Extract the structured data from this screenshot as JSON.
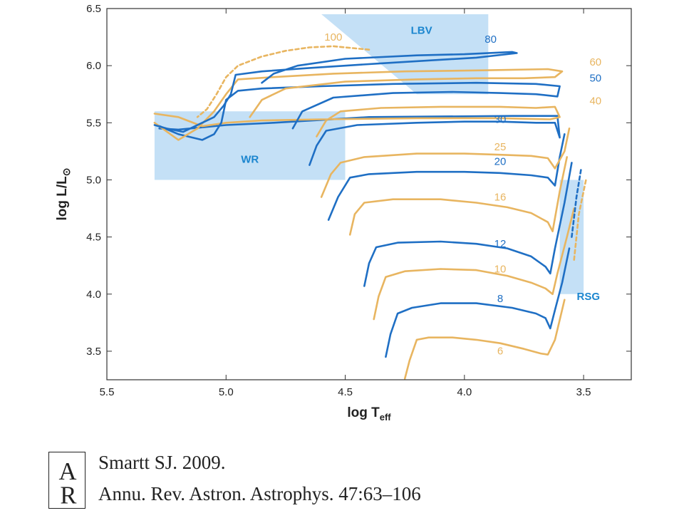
{
  "chart_data": {
    "type": "line",
    "title": "",
    "xlabel": "log T",
    "xlabel_sub": "eff",
    "ylabel": "log L/L",
    "ylabel_sub": "⊙",
    "xlim": [
      5.5,
      3.3
    ],
    "ylim": [
      3.25,
      6.5
    ],
    "x_inverted": true,
    "xticks": [
      5.5,
      5.0,
      4.5,
      4.0,
      3.5
    ],
    "xtick_labels": [
      "5.5",
      "5.0",
      "4.5",
      "4.0",
      "3.5"
    ],
    "yticks": [
      3.5,
      4.0,
      4.5,
      5.0,
      5.5,
      6.0,
      6.5
    ],
    "ytick_labels": [
      "3.5",
      "4.0",
      "4.5",
      "5.0",
      "5.5",
      "6.0",
      "6.5"
    ],
    "grid": false,
    "colors": {
      "blue": "#1f6fc4",
      "orange": "#e8b560",
      "region": "#c4e0f6",
      "region_text": "#1c86cf"
    },
    "regions": [
      {
        "name": "WR",
        "label": "WR",
        "polygon": [
          [
            5.3,
            5.0
          ],
          [
            5.3,
            5.6
          ],
          [
            4.5,
            5.6
          ],
          [
            4.5,
            5.0
          ]
        ],
        "label_at": [
          4.9,
          5.15
        ]
      },
      {
        "name": "LBV",
        "label": "LBV",
        "polygon": [
          [
            4.6,
            6.45
          ],
          [
            3.9,
            6.45
          ],
          [
            3.9,
            5.75
          ],
          [
            4.2,
            5.75
          ]
        ],
        "label_at": [
          4.18,
          6.28
        ]
      },
      {
        "name": "RSG",
        "label": "RSG",
        "polygon": [
          [
            3.6,
            5.0
          ],
          [
            3.5,
            5.0
          ],
          [
            3.5,
            4.0
          ],
          [
            3.6,
            4.0
          ]
        ],
        "label_at": [
          3.48,
          3.95
        ]
      }
    ],
    "series": [
      {
        "name": "6",
        "color": "orange",
        "dash": false,
        "label_at": [
          3.85,
          3.47
        ],
        "points": [
          [
            4.25,
            3.26
          ],
          [
            4.23,
            3.42
          ],
          [
            4.2,
            3.6
          ],
          [
            4.15,
            3.62
          ],
          [
            4.05,
            3.62
          ],
          [
            3.95,
            3.6
          ],
          [
            3.85,
            3.57
          ],
          [
            3.75,
            3.52
          ],
          [
            3.68,
            3.48
          ],
          [
            3.65,
            3.47
          ],
          [
            3.62,
            3.6
          ],
          [
            3.58,
            3.95
          ]
        ]
      },
      {
        "name": "8",
        "color": "blue",
        "dash": false,
        "label_at": [
          3.85,
          3.93
        ],
        "points": [
          [
            4.33,
            3.45
          ],
          [
            4.31,
            3.65
          ],
          [
            4.28,
            3.83
          ],
          [
            4.22,
            3.88
          ],
          [
            4.1,
            3.92
          ],
          [
            3.95,
            3.92
          ],
          [
            3.8,
            3.88
          ],
          [
            3.7,
            3.83
          ],
          [
            3.66,
            3.79
          ],
          [
            3.64,
            3.7
          ],
          [
            3.62,
            3.86
          ],
          [
            3.59,
            4.1
          ],
          [
            3.56,
            4.4
          ]
        ]
      },
      {
        "name": "10",
        "color": "orange",
        "dash": false,
        "label_at": [
          3.85,
          4.19
        ],
        "points": [
          [
            4.38,
            3.78
          ],
          [
            4.36,
            3.98
          ],
          [
            4.33,
            4.15
          ],
          [
            4.25,
            4.2
          ],
          [
            4.1,
            4.22
          ],
          [
            3.95,
            4.21
          ],
          [
            3.82,
            4.16
          ],
          [
            3.72,
            4.1
          ],
          [
            3.66,
            4.05
          ],
          [
            3.63,
            4.0
          ],
          [
            3.61,
            4.18
          ],
          [
            3.57,
            4.5
          ],
          [
            3.54,
            4.75
          ]
        ]
      },
      {
        "name": "12",
        "color": "blue",
        "dash": false,
        "label_at": [
          3.85,
          4.41
        ],
        "points": [
          [
            4.42,
            4.07
          ],
          [
            4.4,
            4.27
          ],
          [
            4.37,
            4.41
          ],
          [
            4.28,
            4.45
          ],
          [
            4.1,
            4.46
          ],
          [
            3.95,
            4.44
          ],
          [
            3.82,
            4.4
          ],
          [
            3.72,
            4.33
          ],
          [
            3.66,
            4.24
          ],
          [
            3.64,
            4.18
          ],
          [
            3.62,
            4.4
          ],
          [
            3.58,
            4.8
          ],
          [
            3.55,
            5.15
          ]
        ]
      },
      {
        "name": "16",
        "color": "orange",
        "dash": false,
        "label_at": [
          3.85,
          4.82
        ],
        "points": [
          [
            4.48,
            4.52
          ],
          [
            4.46,
            4.7
          ],
          [
            4.42,
            4.8
          ],
          [
            4.3,
            4.83
          ],
          [
            4.1,
            4.83
          ],
          [
            3.95,
            4.8
          ],
          [
            3.82,
            4.76
          ],
          [
            3.72,
            4.71
          ],
          [
            3.65,
            4.63
          ],
          [
            3.63,
            4.55
          ],
          [
            3.6,
            4.9
          ],
          [
            3.57,
            5.2
          ]
        ]
      },
      {
        "name": "20",
        "color": "blue",
        "dash": false,
        "label_at": [
          3.85,
          5.13
        ],
        "points": [
          [
            4.57,
            4.65
          ],
          [
            4.53,
            4.85
          ],
          [
            4.48,
            5.02
          ],
          [
            4.4,
            5.05
          ],
          [
            4.2,
            5.07
          ],
          [
            4.0,
            5.07
          ],
          [
            3.85,
            5.06
          ],
          [
            3.72,
            5.04
          ],
          [
            3.65,
            5.02
          ],
          [
            3.62,
            4.95
          ],
          [
            3.6,
            5.2
          ],
          [
            3.58,
            5.4
          ]
        ]
      },
      {
        "name": "25",
        "color": "orange",
        "dash": false,
        "label_at": [
          3.85,
          5.26
        ],
        "points": [
          [
            4.6,
            4.85
          ],
          [
            4.56,
            5.05
          ],
          [
            4.52,
            5.15
          ],
          [
            4.42,
            5.2
          ],
          [
            4.2,
            5.23
          ],
          [
            4.0,
            5.23
          ],
          [
            3.85,
            5.22
          ],
          [
            3.72,
            5.21
          ],
          [
            3.65,
            5.19
          ],
          [
            3.62,
            5.1
          ],
          [
            3.58,
            5.25
          ],
          [
            3.56,
            5.45
          ]
        ]
      },
      {
        "name": "30",
        "color": "blue",
        "dash": false,
        "label_at": [
          3.85,
          5.5
        ],
        "points": [
          [
            4.65,
            5.13
          ],
          [
            4.62,
            5.3
          ],
          [
            4.58,
            5.43
          ],
          [
            4.45,
            5.48
          ],
          [
            4.2,
            5.5
          ],
          [
            4.0,
            5.51
          ],
          [
            3.85,
            5.51
          ],
          [
            3.7,
            5.5
          ],
          [
            3.62,
            5.5
          ],
          [
            3.6,
            5.37
          ],
          [
            3.61,
            5.56
          ],
          [
            3.8,
            5.56
          ],
          [
            4.4,
            5.55
          ],
          [
            4.8,
            5.5
          ],
          [
            5.0,
            5.48
          ],
          [
            5.1,
            5.46
          ],
          [
            5.2,
            5.44
          ],
          [
            5.28,
            5.45
          ]
        ]
      },
      {
        "name": "40",
        "color": "orange",
        "dash": false,
        "label_at": [
          3.45,
          5.66
        ],
        "points": [
          [
            4.62,
            5.38
          ],
          [
            4.58,
            5.52
          ],
          [
            4.52,
            5.6
          ],
          [
            4.35,
            5.63
          ],
          [
            4.1,
            5.64
          ],
          [
            3.85,
            5.64
          ],
          [
            3.7,
            5.63
          ],
          [
            3.62,
            5.64
          ],
          [
            3.6,
            5.55
          ],
          [
            3.64,
            5.53
          ],
          [
            3.85,
            5.54
          ],
          [
            4.2,
            5.54
          ],
          [
            4.6,
            5.53
          ],
          [
            4.85,
            5.52
          ],
          [
            5.0,
            5.5
          ],
          [
            5.1,
            5.47
          ],
          [
            5.2,
            5.55
          ],
          [
            5.3,
            5.58
          ]
        ]
      },
      {
        "name": "50",
        "color": "blue",
        "dash": false,
        "label_at": [
          3.45,
          5.86
        ],
        "points": [
          [
            4.72,
            5.45
          ],
          [
            4.68,
            5.6
          ],
          [
            4.55,
            5.72
          ],
          [
            4.3,
            5.76
          ],
          [
            4.05,
            5.77
          ],
          [
            3.85,
            5.76
          ],
          [
            3.7,
            5.75
          ],
          [
            3.61,
            5.73
          ],
          [
            3.6,
            5.82
          ],
          [
            3.7,
            5.84
          ],
          [
            3.95,
            5.85
          ],
          [
            4.3,
            5.84
          ],
          [
            4.6,
            5.82
          ],
          [
            4.85,
            5.8
          ],
          [
            4.95,
            5.78
          ],
          [
            5.0,
            5.7
          ],
          [
            5.02,
            5.5
          ],
          [
            5.05,
            5.4
          ],
          [
            5.1,
            5.35
          ],
          [
            5.2,
            5.4
          ],
          [
            5.29,
            5.48
          ]
        ]
      },
      {
        "name": "60",
        "color": "orange",
        "dash": false,
        "label_at": [
          3.45,
          6.0
        ],
        "points": [
          [
            4.9,
            5.55
          ],
          [
            4.85,
            5.7
          ],
          [
            4.75,
            5.8
          ],
          [
            4.5,
            5.86
          ],
          [
            4.2,
            5.88
          ],
          [
            3.95,
            5.89
          ],
          [
            3.75,
            5.89
          ],
          [
            3.62,
            5.9
          ],
          [
            3.59,
            5.95
          ],
          [
            3.65,
            5.97
          ],
          [
            3.9,
            5.96
          ],
          [
            4.25,
            5.95
          ],
          [
            4.55,
            5.93
          ],
          [
            4.8,
            5.9
          ],
          [
            4.95,
            5.88
          ],
          [
            5.0,
            5.75
          ],
          [
            5.05,
            5.6
          ],
          [
            5.12,
            5.45
          ],
          [
            5.2,
            5.35
          ],
          [
            5.3,
            5.5
          ]
        ]
      },
      {
        "name": "80",
        "color": "blue",
        "dash": false,
        "label_at": [
          3.89,
          6.2
        ],
        "points": [
          [
            4.85,
            5.85
          ],
          [
            4.8,
            5.93
          ],
          [
            4.7,
            6.0
          ],
          [
            4.5,
            6.06
          ],
          [
            4.2,
            6.09
          ],
          [
            4.0,
            6.1
          ],
          [
            3.8,
            6.12
          ],
          [
            3.78,
            6.11
          ],
          [
            3.95,
            6.07
          ],
          [
            4.35,
            6.02
          ],
          [
            4.65,
            5.98
          ],
          [
            4.85,
            5.95
          ],
          [
            4.96,
            5.92
          ],
          [
            4.98,
            5.75
          ],
          [
            5.01,
            5.65
          ],
          [
            5.05,
            5.55
          ],
          [
            5.1,
            5.5
          ],
          [
            5.18,
            5.42
          ],
          [
            5.25,
            5.45
          ],
          [
            5.3,
            5.48
          ]
        ]
      },
      {
        "name": "100",
        "color": "orange",
        "dash": true,
        "label_at": [
          4.55,
          6.22
        ],
        "points": [
          [
            4.4,
            6.14
          ],
          [
            4.55,
            6.17
          ],
          [
            4.65,
            6.16
          ],
          [
            4.75,
            6.13
          ],
          [
            4.85,
            6.08
          ],
          [
            4.95,
            6.0
          ],
          [
            5.0,
            5.9
          ],
          [
            5.04,
            5.75
          ],
          [
            5.08,
            5.62
          ],
          [
            5.12,
            5.55
          ]
        ]
      },
      {
        "name": "",
        "color": "blue",
        "dash": true,
        "label_at": null,
        "points": [
          [
            3.55,
            4.5
          ],
          [
            3.53,
            4.85
          ],
          [
            3.51,
            5.1
          ]
        ]
      },
      {
        "name": "",
        "color": "orange",
        "dash": true,
        "label_at": null,
        "points": [
          [
            3.54,
            4.3
          ],
          [
            3.52,
            4.7
          ],
          [
            3.49,
            5.0
          ]
        ]
      }
    ]
  },
  "citation": {
    "logo_letters": "AR",
    "line1": "Smartt SJ. 2009.",
    "line2": "Annu. Rev. Astron. Astrophys. 47:63–106"
  }
}
